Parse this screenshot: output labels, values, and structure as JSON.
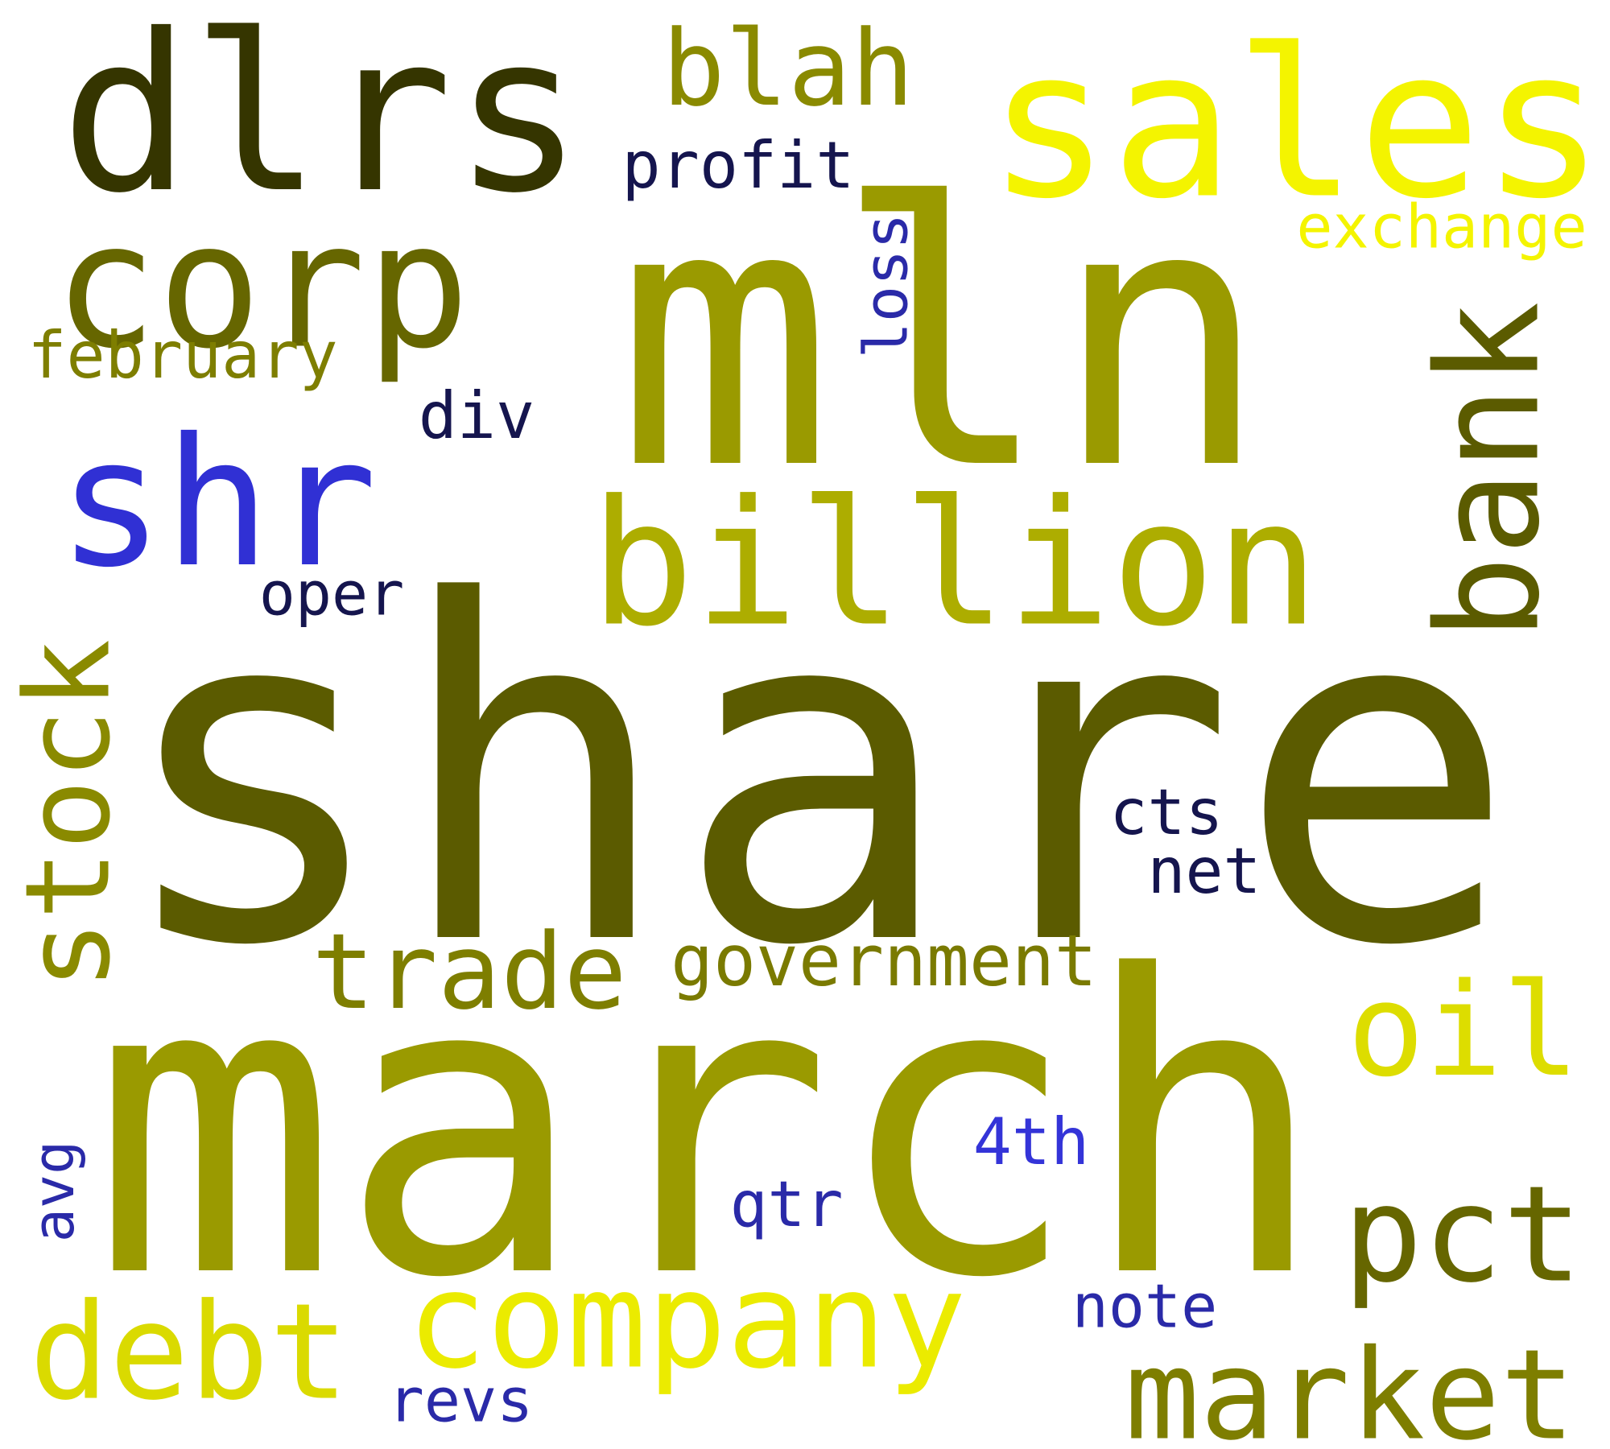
{
  "word_cloud": {
    "words": [
      {
        "id": "share",
        "text": "share",
        "color": "#5b5b00"
      },
      {
        "id": "march",
        "text": "march",
        "color": "#9a9a00"
      },
      {
        "id": "mln",
        "text": "mln",
        "color": "#9a9a00"
      },
      {
        "id": "dlrs",
        "text": "dlrs",
        "color": "#353500"
      },
      {
        "id": "sales",
        "text": "sales",
        "color": "#f4f400"
      },
      {
        "id": "billion",
        "text": "billion",
        "color": "#adad00"
      },
      {
        "id": "corp",
        "text": "corp",
        "color": "#666600"
      },
      {
        "id": "shr",
        "text": "shr",
        "color": "#3030d4"
      },
      {
        "id": "bank",
        "text": "bank",
        "color": "#5b5b00"
      },
      {
        "id": "company",
        "text": "company",
        "color": "#ebeb00"
      },
      {
        "id": "stock",
        "text": "stock",
        "color": "#8a8a00"
      },
      {
        "id": "market",
        "text": "market",
        "color": "#7e7e00"
      },
      {
        "id": "pct",
        "text": "pct",
        "color": "#666600"
      },
      {
        "id": "debt",
        "text": "debt",
        "color": "#dada00"
      },
      {
        "id": "oil",
        "text": "oil",
        "color": "#dddd00"
      },
      {
        "id": "blah",
        "text": "blah",
        "color": "#8a8a00"
      },
      {
        "id": "trade",
        "text": "trade",
        "color": "#7e7e00"
      },
      {
        "id": "government",
        "text": "government",
        "color": "#7a7a00"
      },
      {
        "id": "exchange",
        "text": "exchange",
        "color": "#f4f400"
      },
      {
        "id": "profit",
        "text": "profit",
        "color": "#15154e"
      },
      {
        "id": "february",
        "text": "february",
        "color": "#7e7e00"
      },
      {
        "id": "loss",
        "text": "loss",
        "color": "#2a2aa8"
      },
      {
        "id": "div",
        "text": "div",
        "color": "#15154e"
      },
      {
        "id": "oper",
        "text": "oper",
        "color": "#15154e"
      },
      {
        "id": "cts",
        "text": "cts",
        "color": "#15154e"
      },
      {
        "id": "net",
        "text": "net",
        "color": "#15154e"
      },
      {
        "id": "4th",
        "text": "4th",
        "color": "#3434d8"
      },
      {
        "id": "qtr",
        "text": "qtr",
        "color": "#2a2aa8"
      },
      {
        "id": "note",
        "text": "note",
        "color": "#2a2aa8"
      },
      {
        "id": "avg",
        "text": "avg",
        "color": "#2a2aa8"
      },
      {
        "id": "revs",
        "text": "revs",
        "color": "#2a2aa8"
      }
    ]
  }
}
